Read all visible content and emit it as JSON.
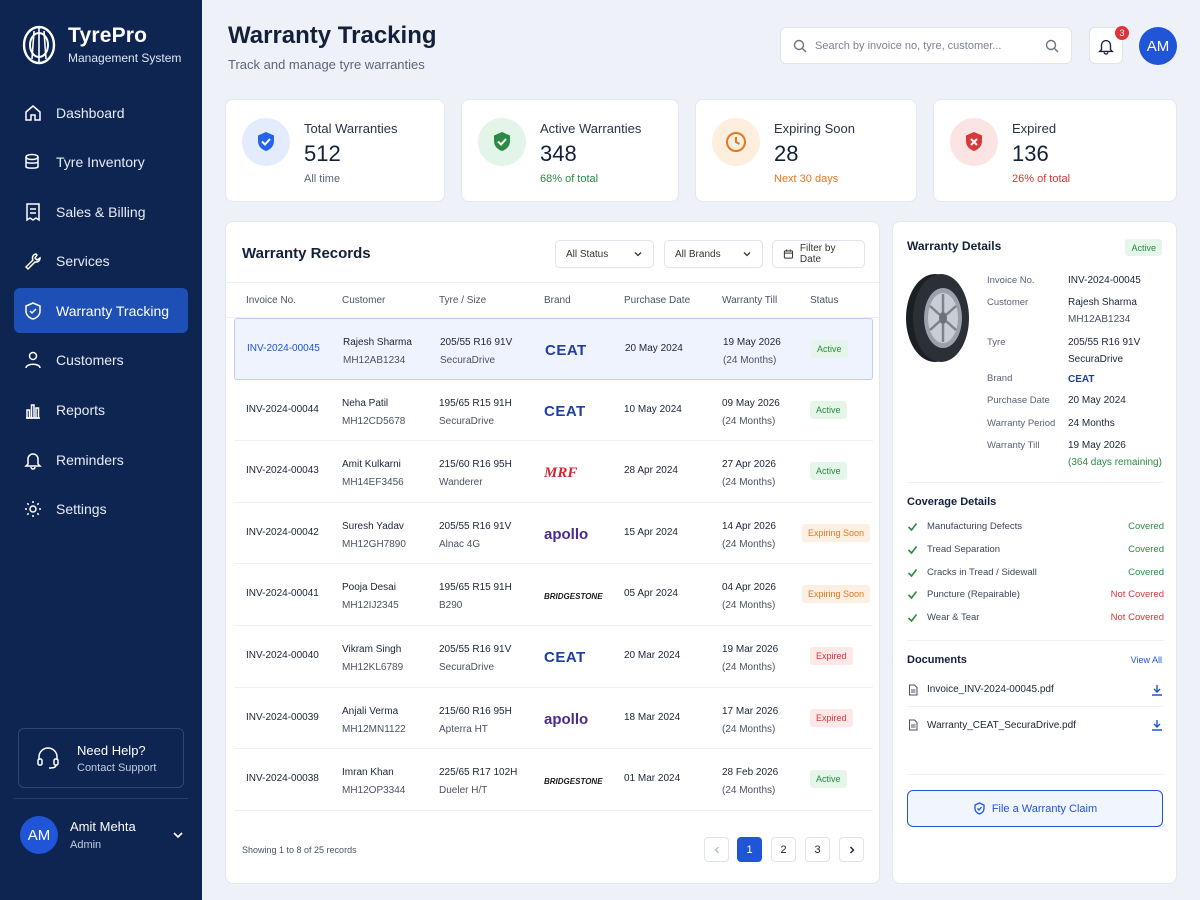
{
  "app": {
    "title": "TyrePro",
    "subtitle": "Management System"
  },
  "nav": [
    {
      "label": "Dashboard",
      "icon": "home-icon"
    },
    {
      "label": "Tyre Inventory",
      "icon": "inventory-icon"
    },
    {
      "label": "Sales & Billing",
      "icon": "billing-icon"
    },
    {
      "label": "Services",
      "icon": "wrench-icon"
    },
    {
      "label": "Warranty Tracking",
      "icon": "shield-icon",
      "active": true
    },
    {
      "label": "Customers",
      "icon": "user-icon"
    },
    {
      "label": "Reports",
      "icon": "bar-chart-icon"
    },
    {
      "label": "Reminders",
      "icon": "bell-icon"
    },
    {
      "label": "Settings",
      "icon": "gear-icon"
    }
  ],
  "help": {
    "title": "Need Help?",
    "subtitle": "Contact Support"
  },
  "user": {
    "initials": "AM",
    "name": "Amit Mehta",
    "role": "Admin"
  },
  "header": {
    "title": "Warranty Tracking",
    "subtitle": "Track and manage tyre warranties",
    "search_placeholder": "Search by invoice no, tyre, customer...",
    "notifications": "3",
    "avatar": "AM"
  },
  "stats": [
    {
      "label": "Total Warranties",
      "value": "512",
      "note": "All time",
      "color": "#2563eb"
    },
    {
      "label": "Active Warranties",
      "value": "348",
      "note": "68% of total",
      "color": "#2b8a43"
    },
    {
      "label": "Expiring Soon",
      "value": "28",
      "note": "Next 30 days",
      "color": "#e27821"
    },
    {
      "label": "Expired",
      "value": "136",
      "note": "26% of total",
      "color": "#d73838"
    }
  ],
  "records": {
    "title": "Warranty Records",
    "filters": {
      "status": "All Status",
      "brands": "All Brands",
      "date": "Filter by Date"
    },
    "columns": [
      "Invoice No.",
      "Customer",
      "Tyre / Size",
      "Brand",
      "Purchase Date",
      "Warranty Till",
      "Status"
    ],
    "rows": [
      {
        "invoice": "INV-2024-00045",
        "customer": "Rajesh Sharma",
        "vehicle": "MH12AB1234",
        "size": "205/55 R16 91V",
        "model": "SecuraDrive",
        "brand": "CEAT",
        "purchase": "20 May 2024",
        "till": "19 May 2026",
        "period": "(24 Months)",
        "status": "Active"
      },
      {
        "invoice": "INV-2024-00044",
        "customer": "Neha Patil",
        "vehicle": "MH12CD5678",
        "size": "195/65 R15 91H",
        "model": "SecuraDrive",
        "brand": "CEAT",
        "purchase": "10 May 2024",
        "till": "09 May 2026",
        "period": "(24 Months)",
        "status": "Active"
      },
      {
        "invoice": "INV-2024-00043",
        "customer": "Amit Kulkarni",
        "vehicle": "MH14EF3456",
        "size": "215/60 R16 95H",
        "model": "Wanderer",
        "brand": "MRF",
        "purchase": "28 Apr 2024",
        "till": "27 Apr 2026",
        "period": "(24 Months)",
        "status": "Active"
      },
      {
        "invoice": "INV-2024-00042",
        "customer": "Suresh Yadav",
        "vehicle": "MH12GH7890",
        "size": "205/55 R16 91V",
        "model": "Alnac 4G",
        "brand": "apollo",
        "purchase": "15 Apr 2024",
        "till": "14 Apr 2026",
        "period": "(24 Months)",
        "status": "Expiring Soon"
      },
      {
        "invoice": "INV-2024-00041",
        "customer": "Pooja Desai",
        "vehicle": "MH12IJ2345",
        "size": "195/65 R15 91H",
        "model": "B290",
        "brand": "BRIDGESTONE",
        "purchase": "05 Apr 2024",
        "till": "04 Apr 2026",
        "period": "(24 Months)",
        "status": "Expiring Soon"
      },
      {
        "invoice": "INV-2024-00040",
        "customer": "Vikram Singh",
        "vehicle": "MH12KL6789",
        "size": "205/55 R16 91V",
        "model": "SecuraDrive",
        "brand": "CEAT",
        "purchase": "20 Mar 2024",
        "till": "19 Mar 2026",
        "period": "(24 Months)",
        "status": "Expired"
      },
      {
        "invoice": "INV-2024-00039",
        "customer": "Anjali Verma",
        "vehicle": "MH12MN1122",
        "size": "215/60 R16 95H",
        "model": "Apterra HT",
        "brand": "apollo",
        "purchase": "18 Mar 2024",
        "till": "17 Mar 2026",
        "period": "(24 Months)",
        "status": "Expired"
      },
      {
        "invoice": "INV-2024-00038",
        "customer": "Imran Khan",
        "vehicle": "MH12OP3344",
        "size": "225/65 R17 102H",
        "model": "Dueler H/T",
        "brand": "BRIDGESTONE",
        "purchase": "01 Mar 2024",
        "till": "28 Feb 2026",
        "period": "(24 Months)",
        "status": "Active"
      }
    ],
    "footer": "Showing 1 to 8 of 25 records",
    "pages": [
      "1",
      "2",
      "3"
    ]
  },
  "details": {
    "title": "Warranty Details",
    "status": "Active",
    "fields": {
      "invoice_label": "Invoice No.",
      "invoice": "INV-2024-00045",
      "customer_label": "Customer",
      "customer": "Rajesh Sharma",
      "vehicle": "MH12AB1234",
      "tyre_label": "Tyre",
      "tyre_size": "205/55 R16 91V",
      "tyre_model": "SecuraDrive",
      "brand_label": "Brand",
      "brand": "CEAT",
      "purchase_label": "Purchase Date",
      "purchase": "20 May 2024",
      "period_label": "Warranty Period",
      "period": "24 Months",
      "till_label": "Warranty Till",
      "till": "19 May 2026",
      "remaining": "(364 days remaining)"
    },
    "coverage_title": "Coverage Details",
    "coverage": [
      {
        "item": "Manufacturing Defects",
        "status": "Covered"
      },
      {
        "item": "Tread Separation",
        "status": "Covered"
      },
      {
        "item": "Cracks in Tread / Sidewall",
        "status": "Covered"
      },
      {
        "item": "Puncture (Repairable)",
        "status": "Not Covered"
      },
      {
        "item": "Wear & Tear",
        "status": "Not Covered"
      }
    ],
    "documents_title": "Documents",
    "view_all": "View All",
    "documents": [
      "Invoice_INV-2024-00045.pdf",
      "Warranty_CEAT_SecuraDrive.pdf"
    ],
    "claim_button": "File a Warranty Claim"
  }
}
